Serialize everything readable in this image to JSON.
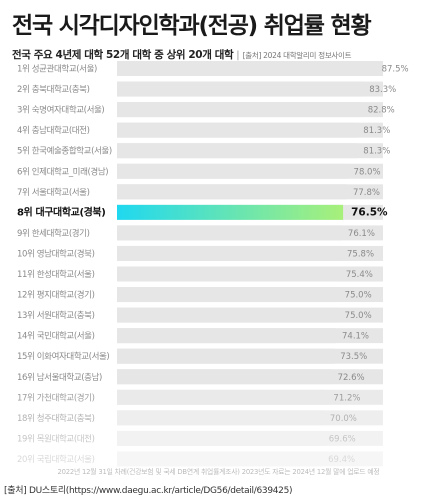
{
  "header": {
    "title": "전국 시각디자인학과(전공) 취업률 현황",
    "subtitle": "전국 주요 4년제 대학 52개 대학 중 상위 20개 대학",
    "separator": "|",
    "source_top": "[출처] 2024 대학알리미 정보사이트"
  },
  "footer": {
    "note": "2022년 12월 31일 차례(건강보험 및 국세 DB연계 취업률계조사) 2023년도 자료는 2024년 12월 말에 업로드 예정",
    "source": "[출처] DU스토리(https://www.daegu.ac.kr/article/DG56/detail/639425)"
  },
  "colors": {
    "bar_bg": "#e6e6e6",
    "highlight_start": "#1fd8f0",
    "highlight_end": "#a8f07a",
    "label_gray": "#8a8a8a"
  },
  "chart_data": {
    "type": "bar",
    "orientation": "horizontal",
    "categories": [
      "1위 성균관대학교(서울)",
      "2위 충북대학교(충북)",
      "3위 숙명여자대학교(서울)",
      "4위 충남대학교(대전)",
      "5위 한국예술종합학교(서울)",
      "6위 인제대학교_미래(경남)",
      "7위 서울대학교(서울)",
      "8위 대구대학교(경북)",
      "9위 한세대학교(경기)",
      "10위 영남대학교(경북)",
      "11위 한성대학교(서울)",
      "12위 평지대학교(경기)",
      "13위 서원대학교(충북)",
      "14위 국민대학교(서울)",
      "15위 이화여자대학교(서울)",
      "16위 남서울대학교(충남)",
      "17위 가천대학교(경기)",
      "18위 청주대학교(충북)",
      "19위 목원대학교(대전)",
      "20위 국립대학교(서울)"
    ],
    "values": [
      87.5,
      83.3,
      82.8,
      81.3,
      81.3,
      78.0,
      77.8,
      76.5,
      76.1,
      75.8,
      75.4,
      75.0,
      75.0,
      74.1,
      73.5,
      72.6,
      71.2,
      70.0,
      69.6,
      69.4
    ],
    "value_labels": [
      "87.5%",
      "83.3%",
      "82.8%",
      "81.3%",
      "81.3%",
      "78.0%",
      "77.8%",
      "76.5%",
      "76.1%",
      "75.8%",
      "75.4%",
      "75.0%",
      "75.0%",
      "74.1%",
      "73.5%",
      "72.6%",
      "71.2%",
      "70.0%",
      "69.6%",
      "69.4%"
    ],
    "highlight_index": 7,
    "unit": "%",
    "xlim": [
      0,
      90
    ]
  }
}
